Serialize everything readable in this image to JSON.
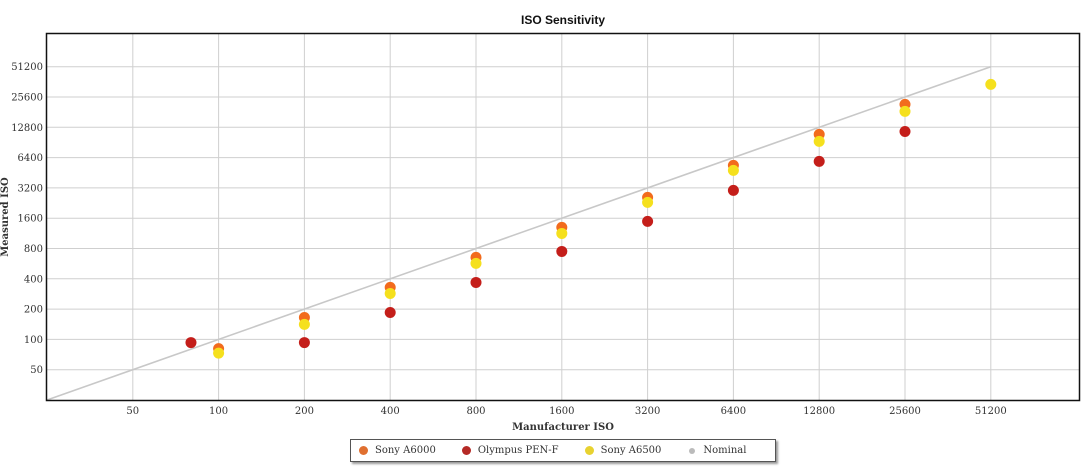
{
  "chart_data": {
    "type": "scatter",
    "title": "ISO Sensitivity",
    "xlabel": "Manufacturer ISO",
    "ylabel": "Measured ISO",
    "scale": "log2",
    "xlim": [
      25,
      102400
    ],
    "ylim": [
      25,
      102400
    ],
    "x_ticks": [
      "50",
      "100",
      "200",
      "400",
      "800",
      "1600",
      "3200",
      "6400",
      "12800",
      "25600",
      "51200"
    ],
    "y_ticks": [
      "50",
      "100",
      "200",
      "400",
      "800",
      "1600",
      "3200",
      "6400",
      "12800",
      "25600",
      "51200"
    ],
    "grid": true,
    "legend_position": "bottom-center",
    "series": [
      {
        "name": "Sony A6000",
        "color": "#f26b1d",
        "points": [
          [
            100,
            81
          ],
          [
            200,
            165
          ],
          [
            400,
            329
          ],
          [
            800,
            653
          ],
          [
            1600,
            1296
          ],
          [
            3200,
            2575
          ],
          [
            6400,
            5355
          ],
          [
            12800,
            10886
          ],
          [
            25600,
            21620
          ]
        ]
      },
      {
        "name": "Olympus PEN-F",
        "color": "#c41e1a",
        "points": [
          [
            80,
            93
          ],
          [
            200,
            93
          ],
          [
            400,
            185
          ],
          [
            800,
            368
          ],
          [
            1600,
            748
          ],
          [
            3200,
            1487
          ],
          [
            6400,
            3024
          ],
          [
            12800,
            5873
          ],
          [
            25600,
            11640
          ]
        ]
      },
      {
        "name": "Sony A6500",
        "color": "#f5e01d",
        "points": [
          [
            100,
            73
          ],
          [
            200,
            141
          ],
          [
            400,
            286
          ],
          [
            800,
            569
          ],
          [
            1600,
            1129
          ],
          [
            3200,
            2300
          ],
          [
            6400,
            4775
          ],
          [
            12800,
            9270
          ],
          [
            25600,
            18440
          ],
          [
            51200,
            34150
          ]
        ]
      },
      {
        "name": "Nominal",
        "color": "#c8c8c8",
        "type": "line",
        "points": [
          [
            25,
            25
          ],
          [
            51200,
            51200
          ]
        ]
      }
    ]
  },
  "legend": {
    "items": [
      {
        "label": "Sony A6000",
        "color": "#e07030"
      },
      {
        "label": "Olympus PEN-F",
        "color": "#b52a26"
      },
      {
        "label": "Sony A6500",
        "color": "#e8d230"
      },
      {
        "label": "Nominal",
        "color": "#bbbbbb"
      }
    ]
  }
}
